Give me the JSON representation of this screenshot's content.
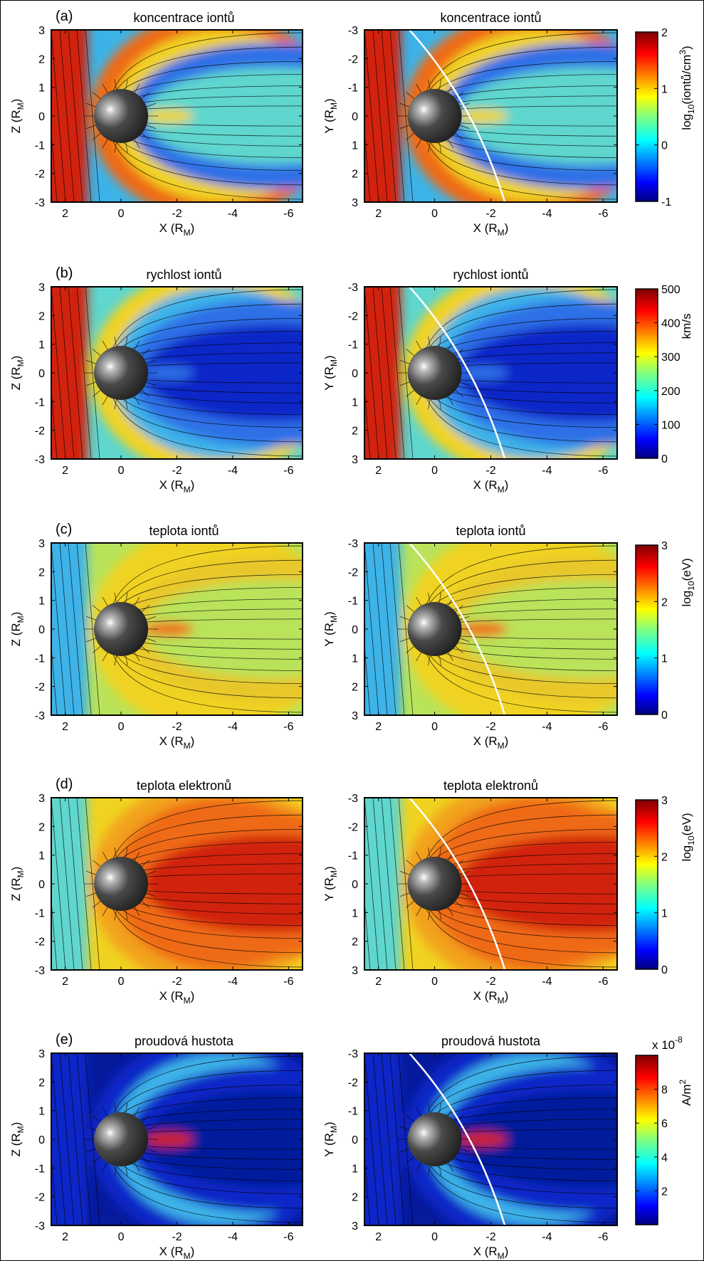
{
  "figure": {
    "panels": [
      {
        "letter": "(a)",
        "left_title": "koncentrace iontů",
        "right_title": "koncentrace iontů",
        "cbar_ticks": [
          "-1",
          "0",
          "1",
          "2"
        ],
        "cbar_label_main": "log",
        "cbar_label_sub": "10",
        "cbar_label_rest": "(iontů/cm",
        "cbar_label_sup": "3",
        "cbar_label_end": ")",
        "exponent": "",
        "field": "density"
      },
      {
        "letter": "(b)",
        "left_title": "rychlost iontů",
        "right_title": "rychlost iontů",
        "cbar_ticks": [
          "0",
          "100",
          "200",
          "300",
          "400",
          "500"
        ],
        "cbar_label_main": "km/s",
        "cbar_label_sub": "",
        "cbar_label_rest": "",
        "cbar_label_sup": "",
        "cbar_label_end": "",
        "exponent": "",
        "field": "velocity"
      },
      {
        "letter": "(c)",
        "left_title": "teplota iontů",
        "right_title": "teplota iontů",
        "cbar_ticks": [
          "0",
          "1",
          "2",
          "3"
        ],
        "cbar_label_main": "log",
        "cbar_label_sub": "10",
        "cbar_label_rest": "(eV)",
        "cbar_label_sup": "",
        "cbar_label_end": "",
        "exponent": "",
        "field": "ion_temp"
      },
      {
        "letter": "(d)",
        "left_title": "teplota elektronů",
        "right_title": "teplota elektronů",
        "cbar_ticks": [
          "0",
          "1",
          "2",
          "3"
        ],
        "cbar_label_main": "log",
        "cbar_label_sub": "10",
        "cbar_label_rest": "(eV)",
        "cbar_label_sup": "",
        "cbar_label_end": "",
        "exponent": "",
        "field": "electron_temp"
      },
      {
        "letter": "(e)",
        "left_title": "proudová hustota",
        "right_title": "proudová hustota",
        "cbar_ticks": [
          "2",
          "4",
          "6",
          "8"
        ],
        "cbar_label_main": "A/m",
        "cbar_label_sub": "",
        "cbar_label_rest": "",
        "cbar_label_sup": "2",
        "cbar_label_end": "",
        "exponent_base": "x 10",
        "exponent_sup": "-8",
        "field": "current"
      }
    ],
    "x_ticks": [
      "2",
      "0",
      "-2",
      "-4",
      "-6"
    ],
    "left_y_ticks": [
      "3",
      "2",
      "1",
      "0",
      "-1",
      "-2",
      "-3"
    ],
    "right_y_ticks": [
      "-3",
      "-2",
      "-1",
      "0",
      "1",
      "2",
      "3"
    ],
    "x_label_main": "X (R",
    "x_label_sub": "M",
    "x_label_end": ")",
    "left_y_label_main": "Z (R",
    "right_y_label_main": "Y (R",
    "y_label_sub": "M",
    "y_label_end": ")"
  },
  "chart_data": [
    {
      "type": "heatmap",
      "title": "koncentrace iontů",
      "xlabel": "X (RM)",
      "ylabel": "Z (RM)",
      "xlim": [
        2.5,
        -6.5
      ],
      "ylim": [
        -3,
        3
      ],
      "colorbar": {
        "label": "log10(iontů/cm3)",
        "range": [
          -1,
          2
        ],
        "colormap": "jet"
      },
      "overlay": "streamlines"
    },
    {
      "type": "heatmap",
      "title": "koncentrace iontů",
      "xlabel": "X (RM)",
      "ylabel": "Y (RM)",
      "xlim": [
        2.5,
        -6.5
      ],
      "ylim": [
        3,
        -3
      ],
      "colorbar": {
        "label": "log10(iontů/cm3)",
        "range": [
          -1,
          2
        ],
        "colormap": "jet"
      },
      "overlay": "streamlines"
    },
    {
      "type": "heatmap",
      "title": "rychlost iontů",
      "xlabel": "X (RM)",
      "ylabel": "Z (RM)",
      "xlim": [
        2.5,
        -6.5
      ],
      "ylim": [
        -3,
        3
      ],
      "colorbar": {
        "label": "km/s",
        "range": [
          0,
          500
        ],
        "colormap": "jet"
      },
      "overlay": "streamlines"
    },
    {
      "type": "heatmap",
      "title": "rychlost iontů",
      "xlabel": "X (RM)",
      "ylabel": "Y (RM)",
      "xlim": [
        2.5,
        -6.5
      ],
      "ylim": [
        3,
        -3
      ],
      "colorbar": {
        "label": "km/s",
        "range": [
          0,
          500
        ],
        "colormap": "jet"
      },
      "overlay": "streamlines"
    },
    {
      "type": "heatmap",
      "title": "teplota iontů",
      "xlabel": "X (RM)",
      "ylabel": "Z (RM)",
      "xlim": [
        2.5,
        -6.5
      ],
      "ylim": [
        -3,
        3
      ],
      "colorbar": {
        "label": "log10(eV)",
        "range": [
          0,
          3
        ],
        "colormap": "jet"
      },
      "overlay": "streamlines"
    },
    {
      "type": "heatmap",
      "title": "teplota iontů",
      "xlabel": "X (RM)",
      "ylabel": "Y (RM)",
      "xlim": [
        2.5,
        -6.5
      ],
      "ylim": [
        3,
        -3
      ],
      "colorbar": {
        "label": "log10(eV)",
        "range": [
          0,
          3
        ],
        "colormap": "jet"
      },
      "overlay": "streamlines"
    },
    {
      "type": "heatmap",
      "title": "teplota elektronů",
      "xlabel": "X (RM)",
      "ylabel": "Z (RM)",
      "xlim": [
        2.5,
        -6.5
      ],
      "ylim": [
        -3,
        3
      ],
      "colorbar": {
        "label": "log10(eV)",
        "range": [
          0,
          3
        ],
        "colormap": "jet"
      },
      "overlay": "streamlines"
    },
    {
      "type": "heatmap",
      "title": "teplota elektronů",
      "xlabel": "X (RM)",
      "ylabel": "Y (RM)",
      "xlim": [
        2.5,
        -6.5
      ],
      "ylim": [
        3,
        -3
      ],
      "colorbar": {
        "label": "log10(eV)",
        "range": [
          0,
          3
        ],
        "colormap": "jet"
      },
      "overlay": "streamlines"
    },
    {
      "type": "heatmap",
      "title": "proudová hustota",
      "xlabel": "X (RM)",
      "ylabel": "Z (RM)",
      "xlim": [
        2.5,
        -6.5
      ],
      "ylim": [
        -3,
        3
      ],
      "colorbar": {
        "label": "A/m2",
        "range": [
          0,
          10
        ],
        "scale_factor": "x 10^-8",
        "colormap": "jet"
      },
      "overlay": "streamlines"
    },
    {
      "type": "heatmap",
      "title": "proudová hustota",
      "xlabel": "X (RM)",
      "ylabel": "Y (RM)",
      "xlim": [
        2.5,
        -6.5
      ],
      "ylim": [
        3,
        -3
      ],
      "colorbar": {
        "label": "A/m2",
        "range": [
          0,
          10
        ],
        "scale_factor": "x 10^-8",
        "colormap": "jet"
      },
      "overlay": "streamlines"
    }
  ]
}
